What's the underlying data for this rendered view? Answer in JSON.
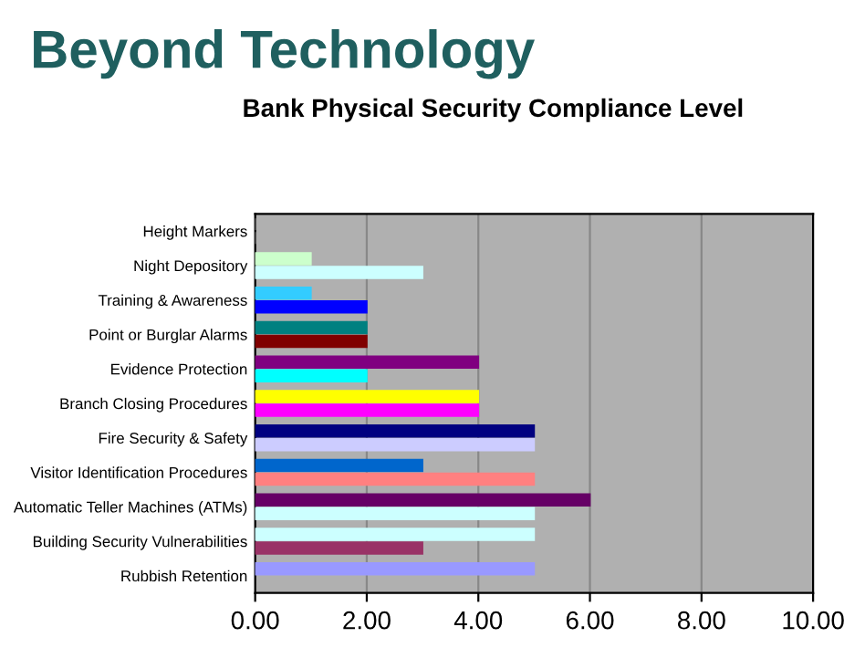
{
  "chart_data": {
    "type": "bar",
    "orientation": "horizontal",
    "title": "Beyond Technology",
    "subtitle": "Bank Physical Security Compliance Level",
    "categories": [
      "Height Markers",
      "Night Depository",
      "Training & Awareness",
      "Point or Burglar Alarms",
      "Evidence Protection",
      "Branch Closing Procedures",
      "Fire Security & Safety",
      "Visitor Identification Procedures",
      "Automatic Teller Machines (ATMs)",
      "Building Security Vulnerabilities",
      "Rubbish Retention"
    ],
    "series": [
      {
        "colors": [
          "#808080",
          "#ccffcc",
          "#33ccff",
          "#008080",
          "#800080",
          "#ffff00",
          "#000080",
          "#0066cc",
          "#660066",
          "#ccffff",
          "#9999ff"
        ],
        "values": [
          0,
          1,
          1,
          2,
          4,
          4,
          5,
          3,
          6,
          5,
          5
        ]
      },
      {
        "colors": [
          "#808080",
          "#ccffff",
          "#0000ff",
          "#800000",
          "#00ffff",
          "#ff00ff",
          "#ccccff",
          "#ff8080",
          "#ccffff",
          "#993366",
          "#000000"
        ],
        "values": [
          0,
          3,
          2,
          2,
          2,
          4,
          5,
          5,
          5,
          3,
          null
        ]
      }
    ],
    "xlim": [
      0,
      10
    ],
    "xticks": [
      {
        "value": 0,
        "label": "0.00"
      },
      {
        "value": 2,
        "label": "2.00"
      },
      {
        "value": 4,
        "label": "4.00"
      },
      {
        "value": 6,
        "label": "6.00"
      },
      {
        "value": 8,
        "label": "8.00"
      },
      {
        "value": 10,
        "label": "10.00"
      }
    ],
    "grid": "x",
    "legend": false
  }
}
